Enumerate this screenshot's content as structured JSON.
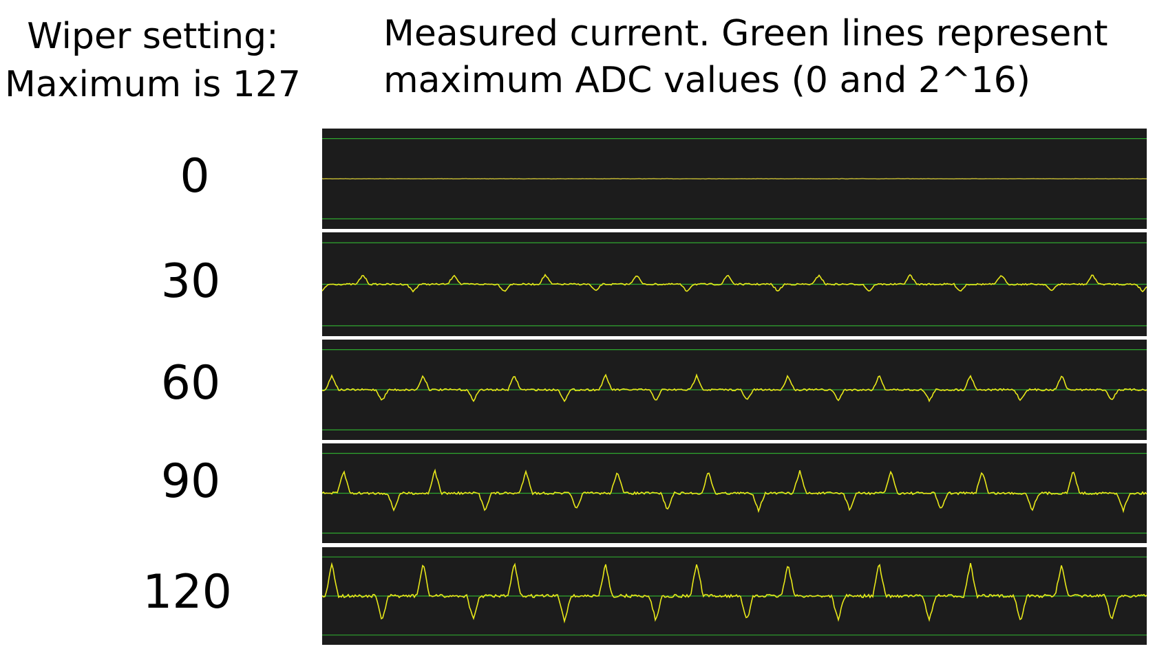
{
  "header": {
    "left": [
      "Wiper setting:",
      "Maximum is 127"
    ],
    "right": [
      "Measured current. Green lines represent",
      "maximum ADC values (0 and 2^16)"
    ]
  },
  "rows": [
    {
      "label": "0"
    },
    {
      "label": "30"
    },
    {
      "label": "60"
    },
    {
      "label": "90"
    },
    {
      "label": "120"
    }
  ]
}
